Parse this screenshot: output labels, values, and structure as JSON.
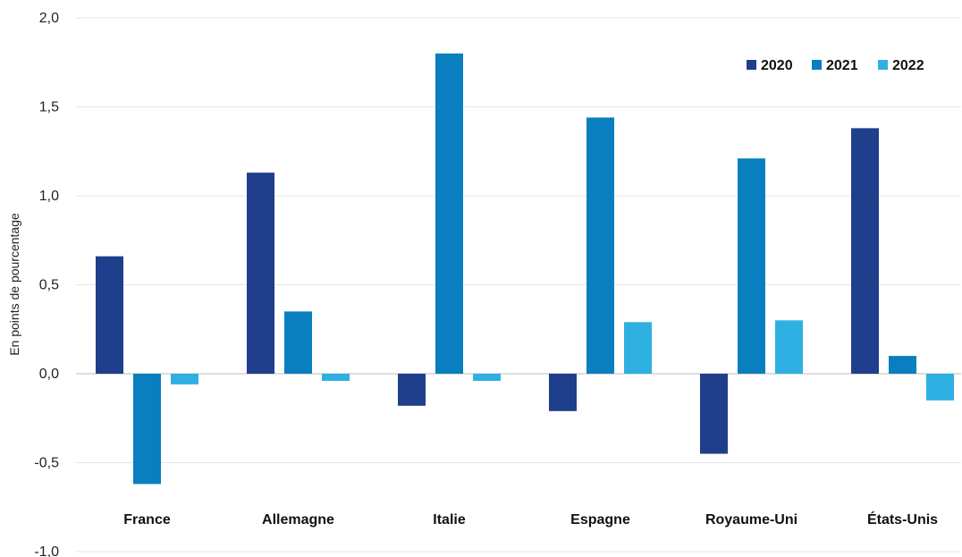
{
  "chart_data": {
    "type": "bar",
    "title": "",
    "xlabel": "",
    "ylabel": "En points de pourcentage",
    "categories": [
      "France",
      "Allemagne",
      "Italie",
      "Espagne",
      "Royaume-Uni",
      "États-Unis"
    ],
    "series": [
      {
        "name": "2020",
        "color": "#1f3f8c",
        "values": [
          0.66,
          1.13,
          -0.18,
          -0.21,
          -0.45,
          1.38
        ]
      },
      {
        "name": "2021",
        "color": "#0a7fbf",
        "values": [
          -0.62,
          0.35,
          1.8,
          1.44,
          1.21,
          0.1
        ]
      },
      {
        "name": "2022",
        "color": "#2fb0e3",
        "values": [
          -0.06,
          -0.04,
          -0.04,
          0.29,
          0.3,
          -0.15
        ]
      }
    ],
    "ylim": [
      -1.0,
      2.0
    ],
    "yticks": [
      "-1,0",
      "-0,5",
      "0,0",
      "0,5",
      "1,0",
      "1,5",
      "2,0"
    ],
    "grid": true,
    "legend_position": "top-right"
  }
}
